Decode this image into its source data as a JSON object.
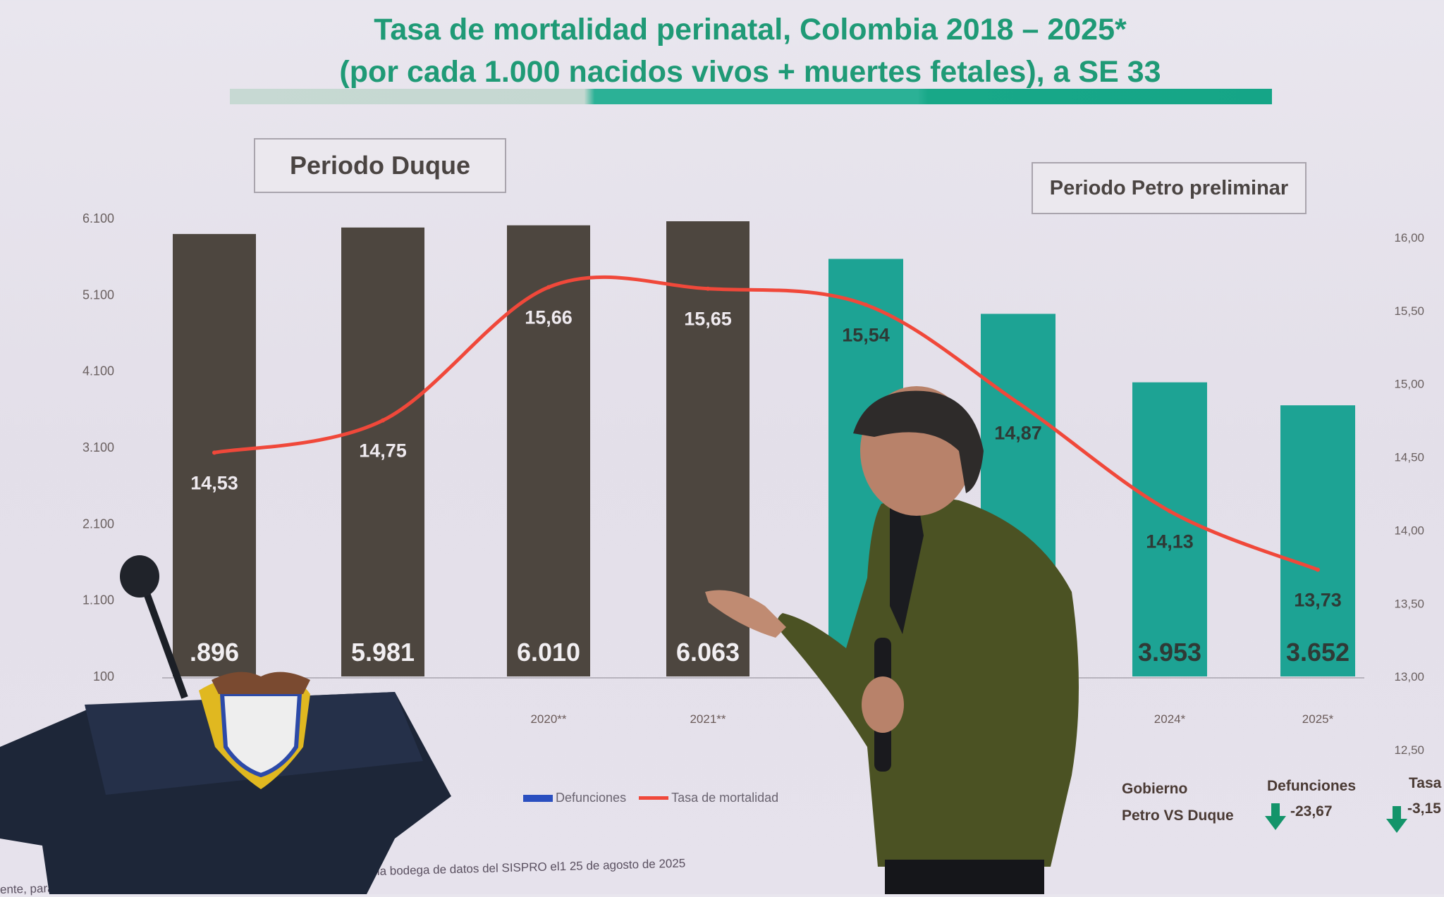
{
  "header": {
    "title_line1": "Tasa de mortalidad perinatal, Colombia 2018 – 2025*",
    "title_line2": "(por cada 1.000 nacidos vivos + muertes fetales), a SE 33"
  },
  "periods": {
    "duque": "Periodo Duque",
    "petro": "Periodo Petro preliminar"
  },
  "chart_data": {
    "type": "bar+line",
    "title": "Tasa de mortalidad perinatal, Colombia 2018 – 2025*",
    "subtitle": "(por cada 1.000 nacidos vivos + muertes fetales), a SE 33",
    "categories": [
      "",
      "",
      "2020**",
      "2021**",
      "",
      "",
      "2024*",
      "2025*"
    ],
    "series": [
      {
        "name": "Defunciones",
        "type": "bar",
        "axis": "left",
        "values": [
          5896,
          5981,
          6010,
          6063,
          5570,
          4850,
          3953,
          3652
        ],
        "labels": [
          ".896",
          "5.981",
          "6.010",
          "6.063",
          "",
          "",
          "3.953",
          "3.652"
        ],
        "colors": [
          "#4d463f",
          "#4d463f",
          "#4d463f",
          "#4d463f",
          "#1da394",
          "#1da394",
          "#1da394",
          "#1da394"
        ]
      },
      {
        "name": "Tasa de mortalidad",
        "type": "line",
        "axis": "right",
        "values": [
          14.53,
          14.75,
          15.66,
          15.65,
          15.54,
          14.87,
          14.13,
          13.73
        ],
        "labels": [
          "14,53",
          "14,75",
          "15,66",
          "15,65",
          "15,54",
          "14,87",
          "14,13",
          "13,73"
        ],
        "color": "#f0483a"
      }
    ],
    "y_left": {
      "ticks": [
        "6.100",
        "5.100",
        "4.100",
        "3.100",
        "2.100",
        "1.100",
        "100"
      ],
      "range": [
        100,
        6100
      ]
    },
    "y_right": {
      "ticks": [
        "16,00",
        "15,50",
        "15,00",
        "14,50",
        "14,00",
        "13,50",
        "13,00",
        "12,50"
      ],
      "range": [
        12.5,
        16
      ]
    },
    "legend": {
      "position": "bottom",
      "items": [
        {
          "label": "Defunciones",
          "color": "#2a4fc0"
        },
        {
          "label": "Tasa de mortalidad",
          "color": "#f0483a"
        }
      ]
    },
    "grid": false
  },
  "summary": {
    "gobierno_label": "Gobierno",
    "comparison": "Petro VS Duque",
    "defunciones_label": "Defunciones",
    "defunciones_value": "-23,67",
    "tasa_label": "Tasa",
    "tasa_value": "-3,15",
    "arrow_color": "#13946a",
    "arrow_icon": "arrow-down-icon"
  },
  "footnotes": {
    "source": "ado en la bodega de datos del SISPRO el1 25 de agosto de 2025",
    "left_fragment": "ente, para"
  }
}
